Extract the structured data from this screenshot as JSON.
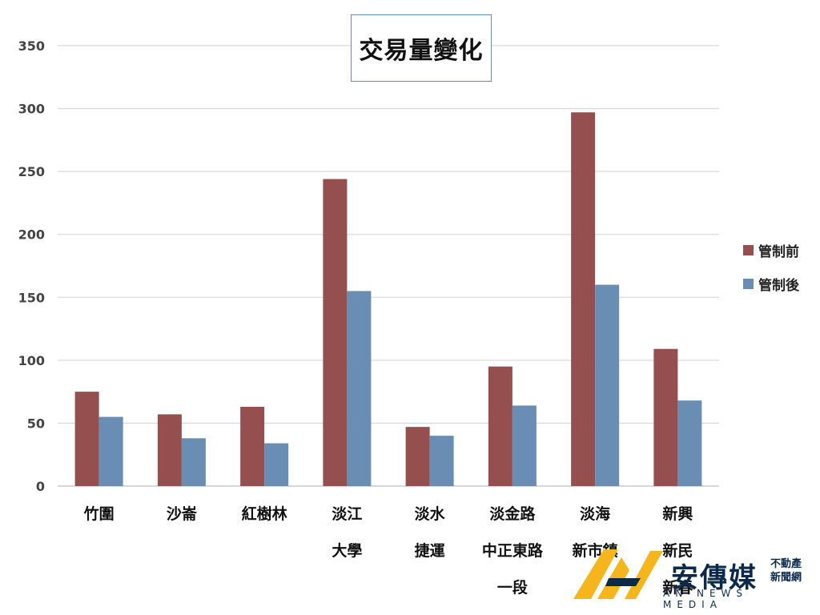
{
  "chart_data": {
    "type": "bar",
    "title": "交易量變化",
    "categories": [
      [
        "竹圍"
      ],
      [
        "沙崙"
      ],
      [
        "紅樹林"
      ],
      [
        "淡江",
        "大學"
      ],
      [
        "淡水",
        "捷運"
      ],
      [
        "淡金路",
        "中正東路",
        "一段"
      ],
      [
        "淡海",
        "新市鎮"
      ],
      [
        "新興",
        "新民",
        "新春"
      ]
    ],
    "series": [
      {
        "name": "管制前",
        "color": "#954f4f",
        "values": [
          75,
          57,
          63,
          244,
          47,
          95,
          297,
          109
        ]
      },
      {
        "name": "管制後",
        "color": "#6a8db3",
        "values": [
          55,
          38,
          34,
          155,
          40,
          64,
          160,
          68
        ]
      }
    ],
    "ylim": [
      0,
      350
    ],
    "yticks": [
      0,
      50,
      100,
      150,
      200,
      250,
      300,
      350
    ],
    "grid": true,
    "legend_position": "right"
  },
  "watermark": {
    "brand": "安傳媒",
    "tag_line1": "不動產",
    "tag_line2": "新聞網",
    "sub": "AN NEWS MEDIA"
  }
}
